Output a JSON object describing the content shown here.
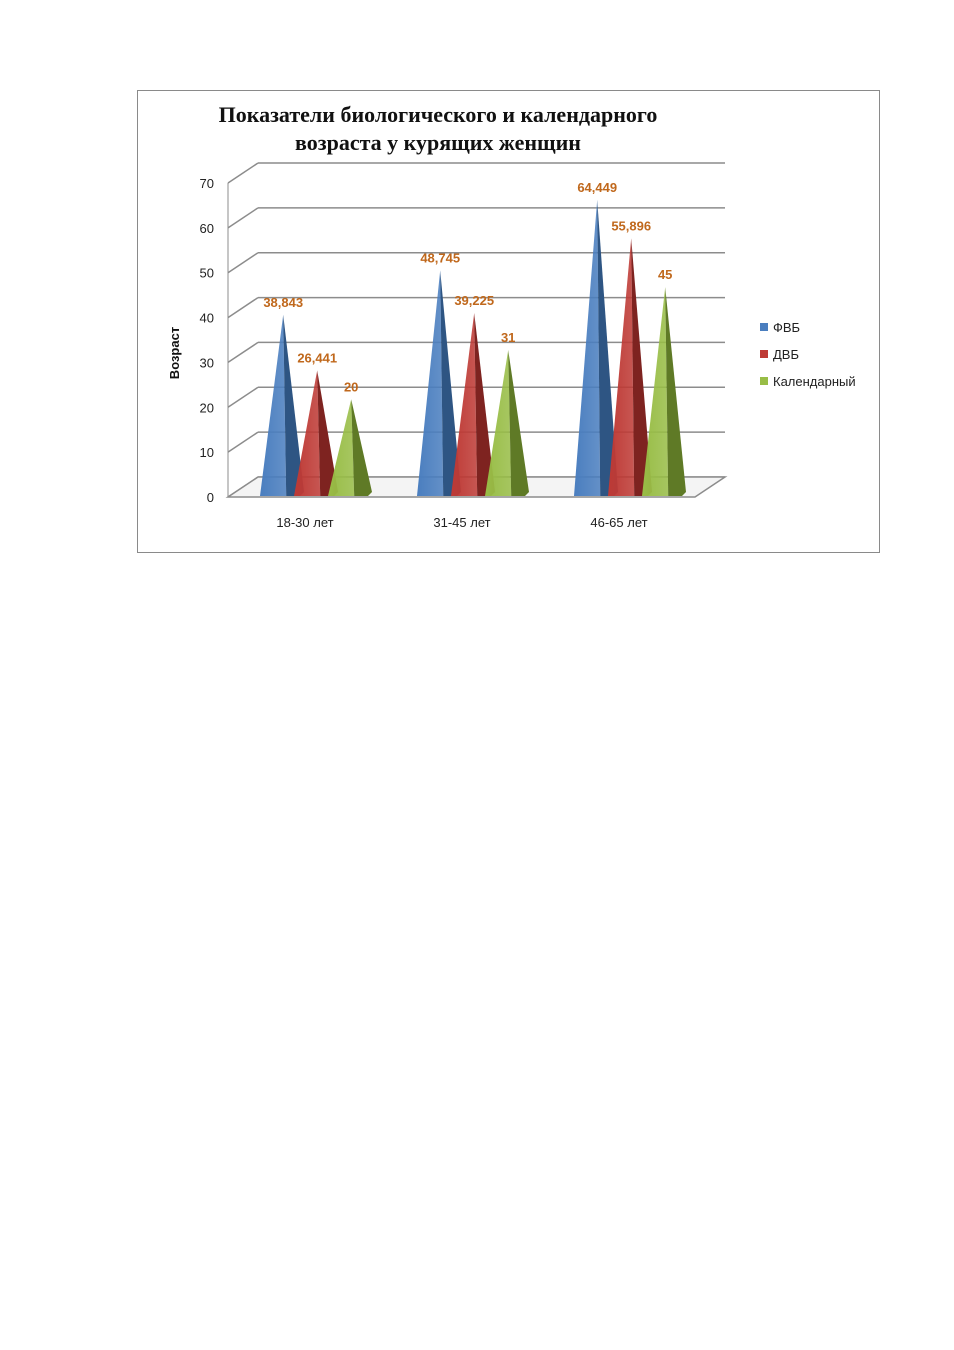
{
  "chart_data": {
    "type": "bar",
    "title_lines": [
      "Показатели биологического и календарного",
      "возраста у курящих женщин"
    ],
    "xlabel": "",
    "ylabel": "Возраст",
    "ylim": [
      0,
      70
    ],
    "yticks": [
      "0",
      "10",
      "20",
      "30",
      "40",
      "50",
      "60",
      "70"
    ],
    "categories": [
      "18-30 лет",
      "31-45 лет",
      "46-65 лет"
    ],
    "series": [
      {
        "name": "ФВБ",
        "values": [
          38.843,
          48.745,
          64.449
        ],
        "labels": [
          "38,843",
          "48,745",
          "64,449"
        ],
        "color": "#4a7ebf",
        "dark": "#2e5583"
      },
      {
        "name": "ДВБ",
        "values": [
          26.441,
          39.225,
          55.896
        ],
        "labels": [
          "26,441",
          "39,225",
          "55,896"
        ],
        "color": "#be3a35",
        "dark": "#7e2320"
      },
      {
        "name": "Календарный",
        "values": [
          20,
          31,
          45
        ],
        "labels": [
          "20",
          "31",
          "45"
        ],
        "color": "#98bd46",
        "dark": "#5f7a26"
      }
    ],
    "grid": true,
    "legend_position": "right",
    "mark_shape": "pyramid",
    "label_color": "#c0681c"
  }
}
